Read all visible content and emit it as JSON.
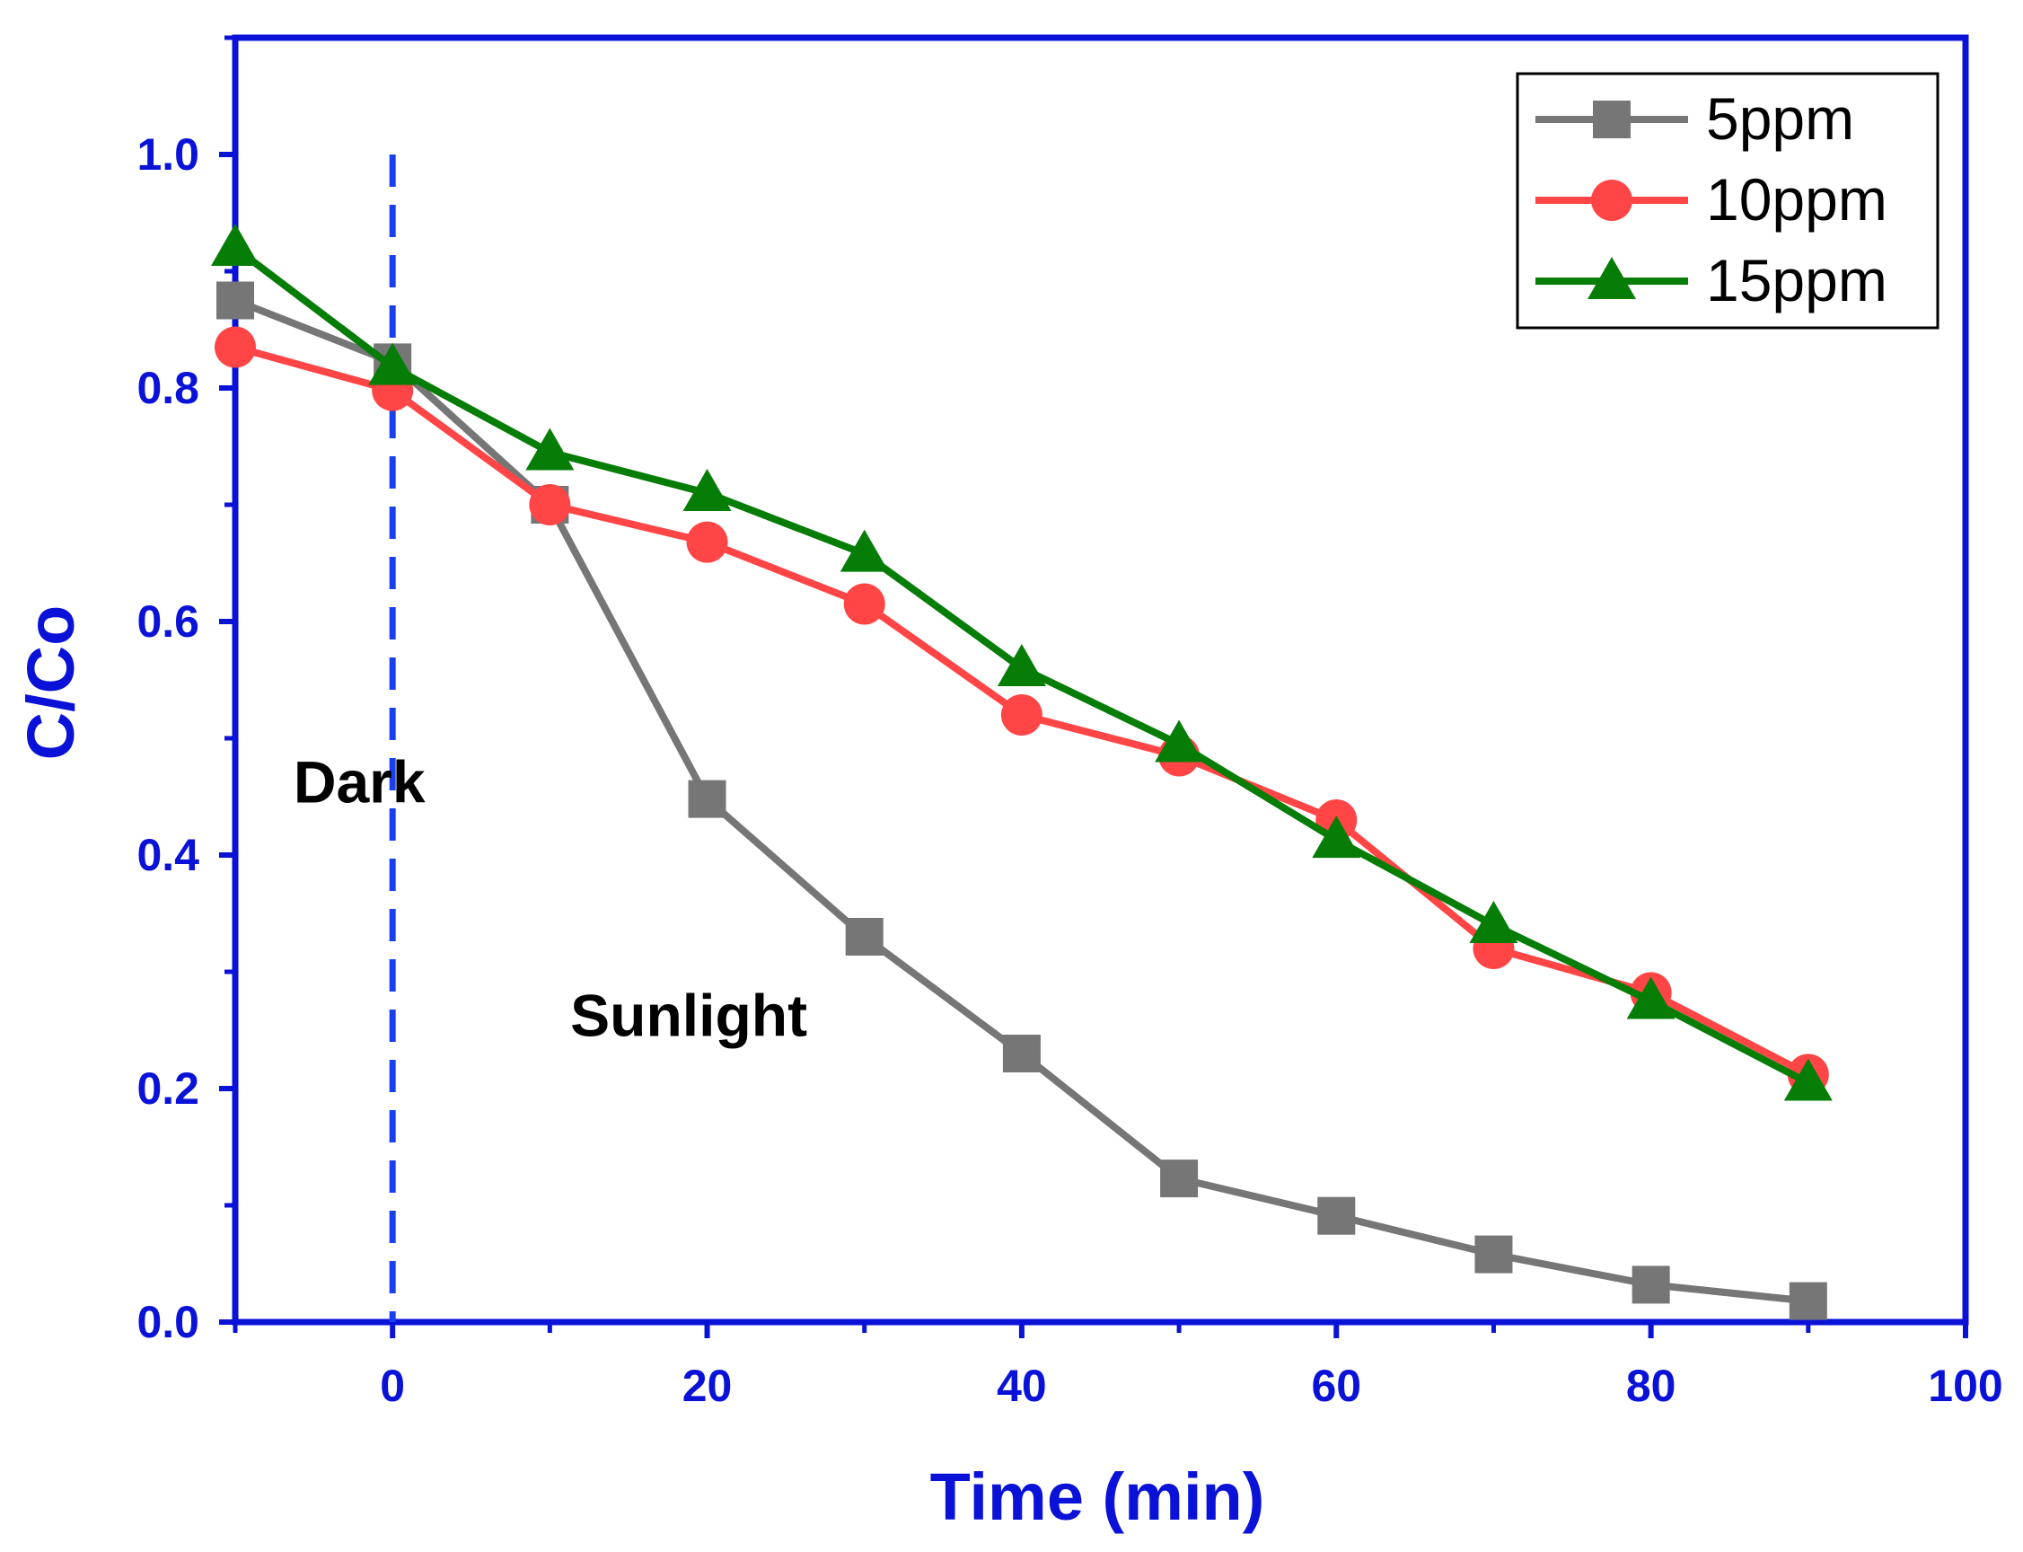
{
  "chart_data": {
    "type": "line",
    "title": "",
    "xlabel": "Time (min)",
    "ylabel": "C/Co",
    "xlim": [
      -10,
      100
    ],
    "ylim": [
      0.0,
      1.1
    ],
    "xticks": [
      0,
      20,
      40,
      60,
      80,
      100
    ],
    "xtick_labels": [
      "0",
      "20",
      "40",
      "60",
      "80",
      "100"
    ],
    "yticks": [
      0.0,
      0.2,
      0.4,
      0.6,
      0.8,
      1.0
    ],
    "ytick_labels": [
      "0.0",
      "0.2",
      "0.4",
      "0.6",
      "0.8",
      "1.0"
    ],
    "x": [
      -10,
      0,
      10,
      20,
      30,
      40,
      50,
      60,
      70,
      80,
      90
    ],
    "series": [
      {
        "name": "5ppm",
        "color": "#767676",
        "marker": "square",
        "values": [
          0.875,
          0.822,
          0.7,
          0.448,
          0.33,
          0.23,
          0.123,
          0.091,
          0.058,
          0.032,
          0.018
        ]
      },
      {
        "name": "10ppm",
        "color": "#ff4545",
        "marker": "circle",
        "values": [
          0.835,
          0.798,
          0.7,
          0.668,
          0.615,
          0.52,
          0.485,
          0.43,
          0.32,
          0.282,
          0.212
        ]
      },
      {
        "name": "15ppm",
        "color": "#067d06",
        "marker": "triangle",
        "values": [
          0.92,
          0.818,
          0.745,
          0.71,
          0.658,
          0.56,
          0.495,
          0.413,
          0.34,
          0.275,
          0.205
        ]
      }
    ],
    "annotations": [
      {
        "text": "Dark",
        "x": -6.3,
        "y": 0.445
      },
      {
        "text": "Sunlight",
        "x": 11.3,
        "y": 0.245
      }
    ],
    "divider": {
      "x": 0,
      "style": "dashed",
      "color": "#1a3ff0"
    },
    "legend": {
      "position": "top-right"
    },
    "axis_color": "#0a12d8",
    "grid": false
  }
}
